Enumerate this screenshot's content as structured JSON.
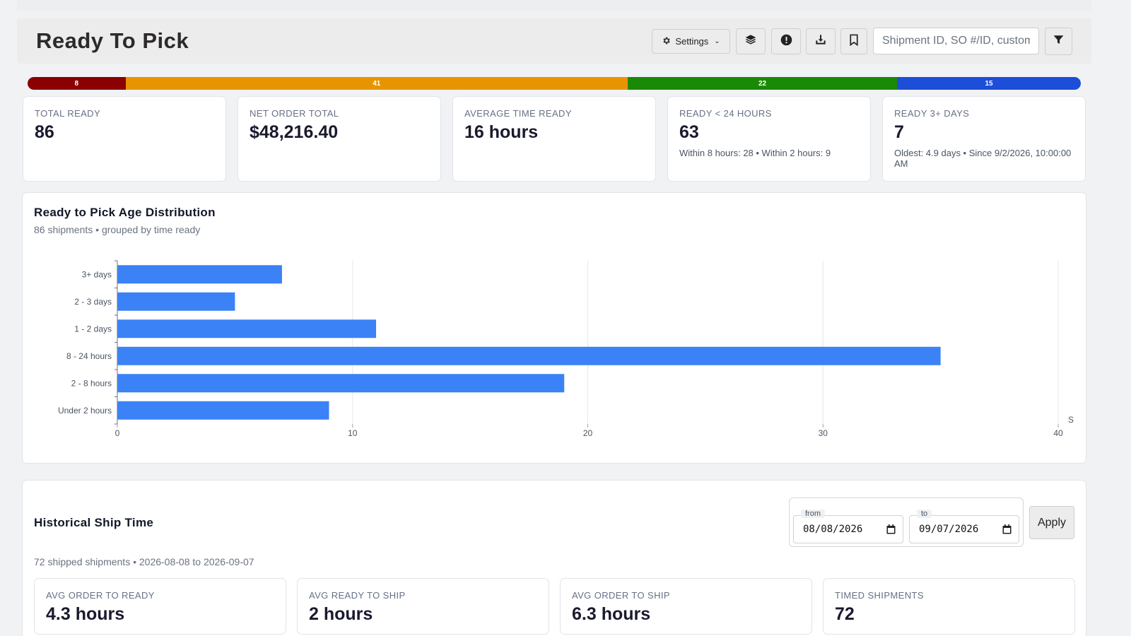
{
  "header": {
    "title": "Ready To Pick",
    "settings_label": "Settings",
    "search_placeholder": "Shipment ID, SO #/ID, custom"
  },
  "progress": {
    "segments": [
      {
        "label": "8",
        "value": 8,
        "color": "#8b0000"
      },
      {
        "label": "41",
        "value": 41,
        "color": "#e69500"
      },
      {
        "label": "22",
        "value": 22,
        "color": "#1a8a06"
      },
      {
        "label": "15",
        "value": 15,
        "color": "#1d4ed8"
      }
    ]
  },
  "stats": [
    {
      "label": "TOTAL READY",
      "value": "86",
      "sub": ""
    },
    {
      "label": "NET ORDER TOTAL",
      "value": "$48,216.40",
      "sub": ""
    },
    {
      "label": "AVERAGE TIME READY",
      "value": "16 hours",
      "sub": ""
    },
    {
      "label": "READY < 24 HOURS",
      "value": "63",
      "sub": "Within 8 hours: 28 • Within 2 hours: 9"
    },
    {
      "label": "READY 3+ DAYS",
      "value": "7",
      "sub": "Oldest: 4.9 days • Since 9/2/2026, 10:00:00 AM"
    }
  ],
  "age_chart": {
    "title": "Ready to Pick Age Distribution",
    "subtitle": "86 shipments • grouped by time ready"
  },
  "chart_data": {
    "type": "bar",
    "orientation": "horizontal",
    "categories": [
      "3+ days",
      "2 - 3 days",
      "1 - 2 days",
      "8 - 24 hours",
      "2 - 8 hours",
      "Under 2 hours"
    ],
    "values": [
      7,
      5,
      11,
      35,
      19,
      9
    ],
    "xlim": [
      0,
      40
    ],
    "xticks": [
      "0",
      "10",
      "20",
      "30",
      "40"
    ],
    "xlabel": "S",
    "grid": true,
    "bar_color": "#3b82f6"
  },
  "historical": {
    "title": "Historical Ship Time",
    "subtitle": "72 shipped shipments • 2026-08-08 to 2026-09-07",
    "from_label": "from",
    "from_value": "08/08/2026",
    "to_label": "to",
    "to_value": "09/07/2026",
    "apply_label": "Apply",
    "metrics": [
      {
        "label": "AVG ORDER TO READY",
        "value": "4.3 hours"
      },
      {
        "label": "AVG READY TO SHIP",
        "value": "2 hours"
      },
      {
        "label": "AVG ORDER TO SHIP",
        "value": "6.3 hours"
      },
      {
        "label": "TIMED SHIPMENTS",
        "value": "72"
      }
    ]
  },
  "icons": [
    "gear-icon",
    "layers-icon",
    "alert-circle-icon",
    "download-icon",
    "bookmark-icon",
    "filter-icon",
    "calendar-icon"
  ]
}
